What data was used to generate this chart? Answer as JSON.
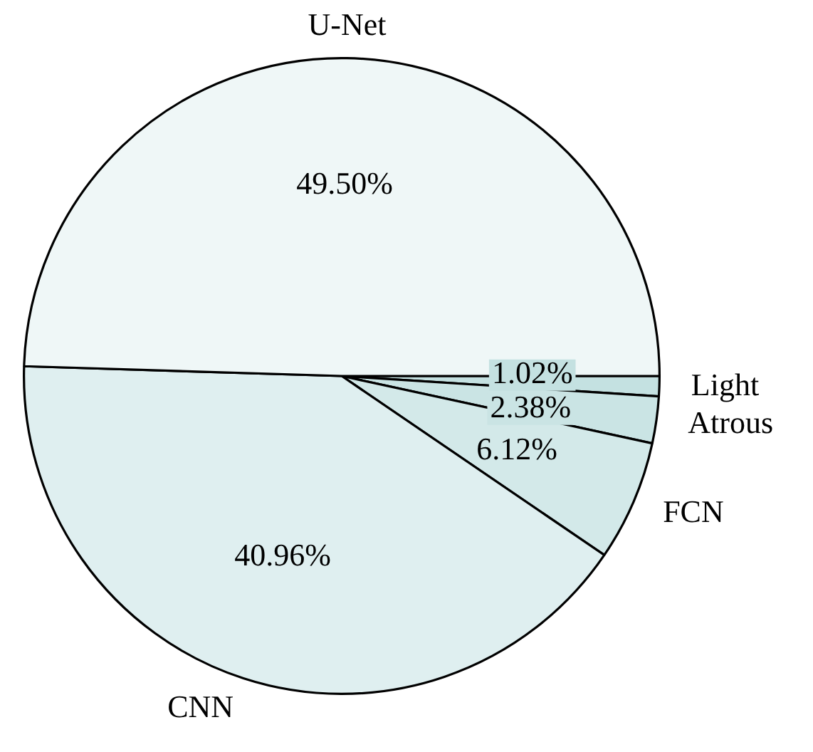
{
  "chart_data": {
    "type": "pie",
    "categories": [
      "U-Net",
      "CNN",
      "FCN",
      "Atrous",
      "Light"
    ],
    "values": [
      49.5,
      40.96,
      6.12,
      2.38,
      1.02
    ],
    "colors": [
      "#eff7f7",
      "#dfeff0",
      "#d3e9e9",
      "#cae4e4",
      "#c4e1e1"
    ],
    "data_labels": true,
    "value_labels": [
      "49.50%",
      "40.96%",
      "6.12%",
      "2.38%",
      "1.02%"
    ],
    "legend": false
  }
}
